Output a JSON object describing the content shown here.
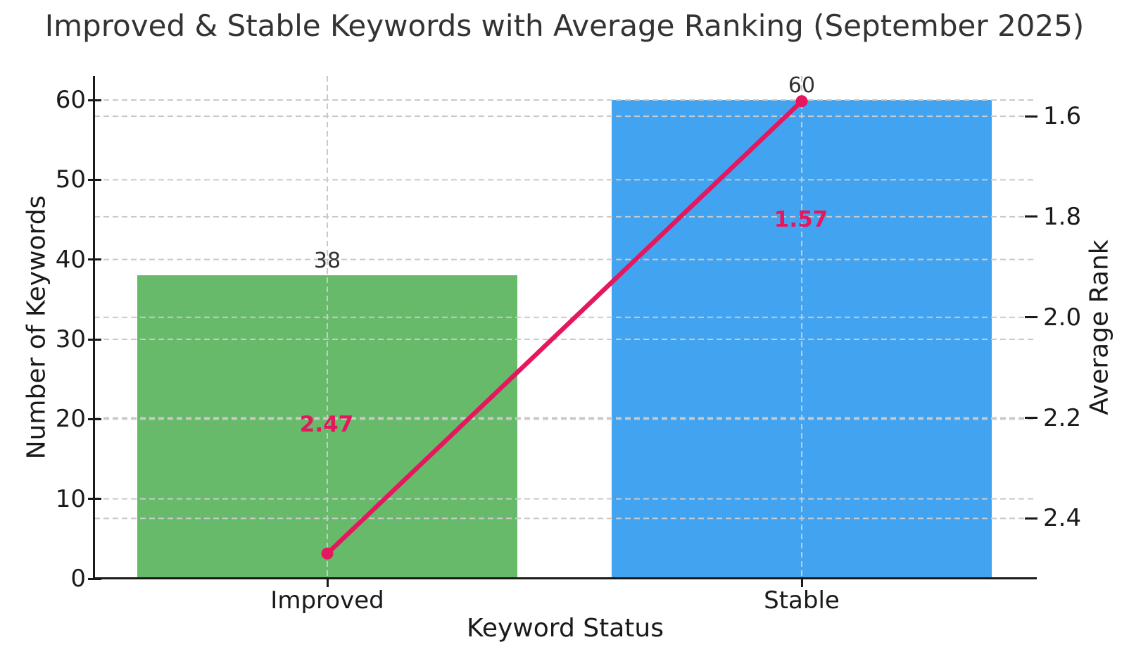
{
  "chart_data": {
    "type": "bar",
    "title": "Improved & Stable Keywords with Average Ranking (September 2025)",
    "xlabel": "Keyword Status",
    "categories": [
      "Improved",
      "Stable"
    ],
    "series": [
      {
        "name": "Number of Keywords",
        "type": "bar",
        "axis": "left",
        "values": [
          38,
          60
        ],
        "bar_colors": [
          "#68ba6b",
          "#42a4f0"
        ],
        "value_labels": [
          "38",
          "60"
        ]
      },
      {
        "name": "Average Rank",
        "type": "line",
        "axis": "right",
        "values": [
          2.47,
          1.57
        ],
        "color": "#e5175f",
        "value_labels": [
          "2.47",
          "1.57"
        ]
      }
    ],
    "left_axis": {
      "label": "Number of Keywords",
      "ticks": [
        0,
        10,
        20,
        30,
        40,
        50,
        60
      ],
      "ylim": [
        0,
        63
      ]
    },
    "right_axis": {
      "label": "Average Rank",
      "tick_labels": [
        "1.6",
        "1.8",
        "2.0",
        "2.2",
        "2.4"
      ],
      "top_value": 1.52,
      "bottom_value": 2.52,
      "inverted": true
    },
    "grid": {
      "style": "dashed",
      "color": "#c9c9c9",
      "horizontal": true,
      "vertical_at_categories": true
    },
    "legend_position": "none"
  },
  "colors": {
    "background": "#ffffff",
    "bar_improved": "#68ba6b",
    "bar_stable": "#42a4f0",
    "line": "#e5175f",
    "grid": "#c9c9c9",
    "spine": "#1a1a1a",
    "title_text": "#333333",
    "tick_text": "#1a1a1a",
    "bar_value_text": "#333333"
  }
}
